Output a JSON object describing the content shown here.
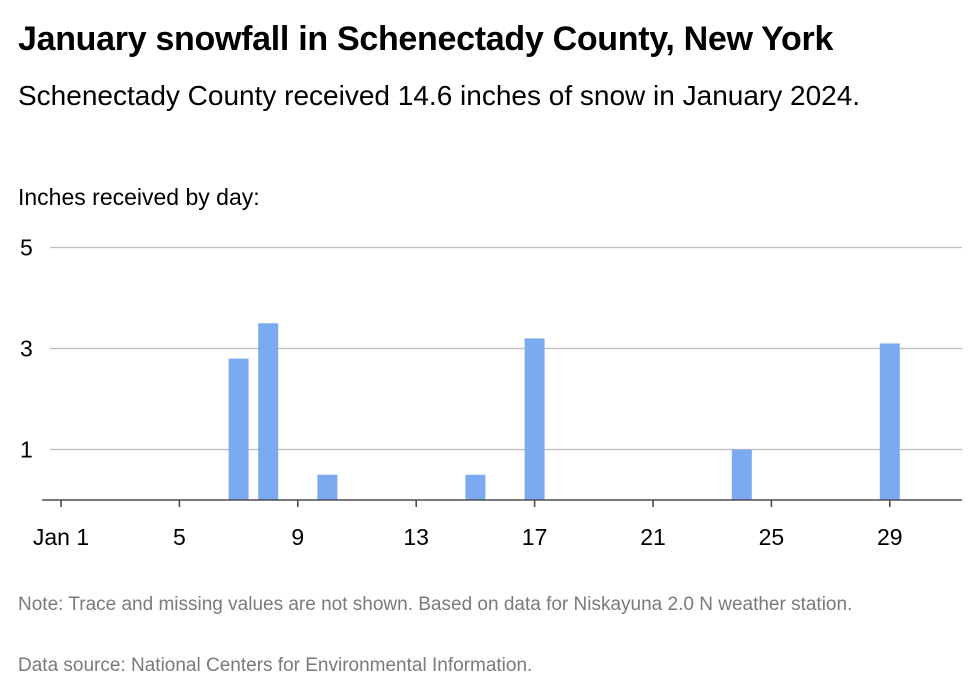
{
  "title": "January snowfall in Schenectady County, New York",
  "subtitle": "Schenectady County received 14.6 inches of snow in January 2024.",
  "unit_label": "Inches received by day:",
  "note": "Note: Trace and missing values are not shown. Based on data for Niskayuna 2.0 N weather station.",
  "source": "Data source: National Centers for Environmental Information.",
  "chart_data": {
    "type": "bar",
    "title": "January snowfall in Schenectady County, New York",
    "ylabel": "Inches received by day:",
    "xlabel": "",
    "x_range": [
      1,
      31
    ],
    "ylim": [
      0,
      5
    ],
    "y_ticks": [
      1,
      3,
      5
    ],
    "x_ticks": [
      {
        "value": 1,
        "label": "Jan 1"
      },
      {
        "value": 5,
        "label": "5"
      },
      {
        "value": 9,
        "label": "9"
      },
      {
        "value": 13,
        "label": "13"
      },
      {
        "value": 17,
        "label": "17"
      },
      {
        "value": 21,
        "label": "21"
      },
      {
        "value": 25,
        "label": "25"
      },
      {
        "value": 29,
        "label": "29"
      }
    ],
    "x": [
      7,
      8,
      10,
      15,
      17,
      24,
      29
    ],
    "values": [
      2.8,
      3.5,
      0.5,
      0.5,
      3.2,
      1.0,
      3.1
    ],
    "grid": true,
    "colors": {
      "bar": "#7baaf0",
      "grid": "#bdbdbd",
      "axis": "#4d4d4d"
    }
  }
}
